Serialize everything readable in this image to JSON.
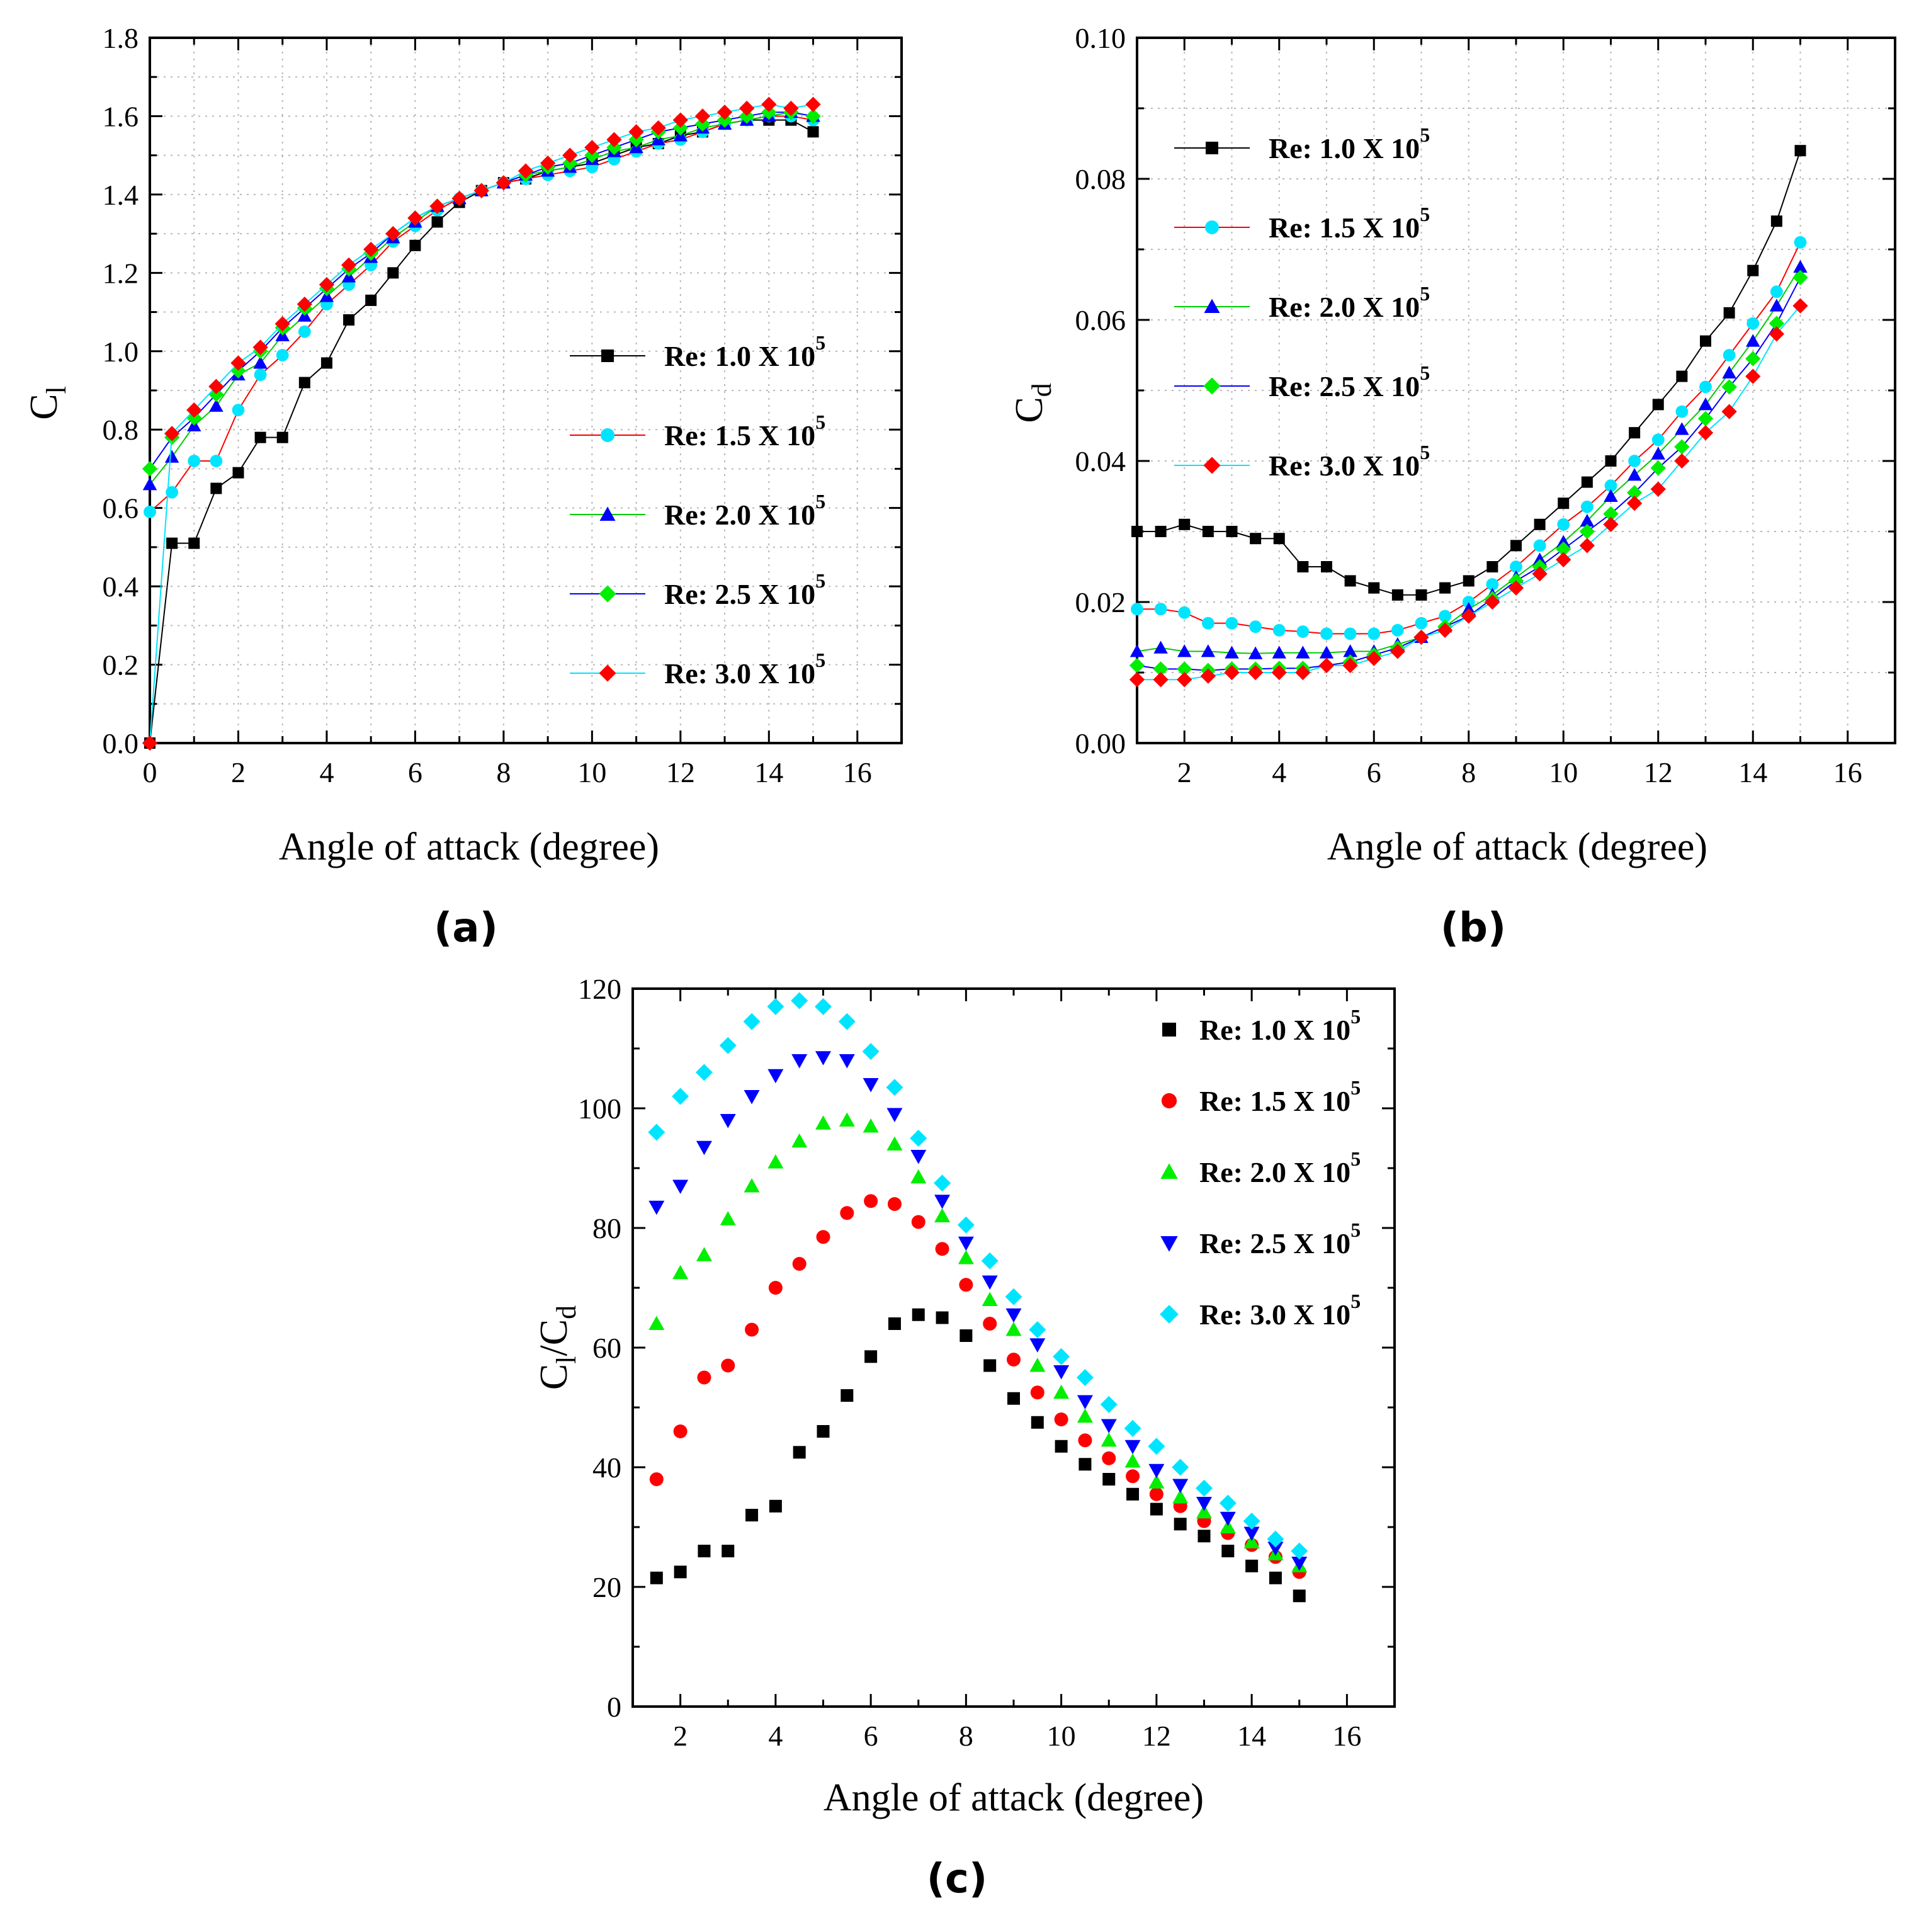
{
  "panels": [
    {
      "id": "a",
      "panel_label": "(a)",
      "xlabel": "Angle of attack (degree)",
      "ylabel_main": "C",
      "ylabel_sub": "l",
      "ylabel_sub2": "",
      "xticks": [
        0,
        2,
        4,
        6,
        8,
        10,
        12,
        14,
        16
      ],
      "yticks": [
        0.0,
        0.2,
        0.4,
        0.6,
        0.8,
        1.0,
        1.2,
        1.4,
        1.6,
        1.8
      ],
      "ytick_decimals": 1,
      "legend_position": "lower-right"
    },
    {
      "id": "b",
      "panel_label": "(b)",
      "xlabel": "Angle of attack (degree)",
      "ylabel_main": "C",
      "ylabel_sub": "d",
      "ylabel_sub2": "",
      "xticks": [
        2,
        4,
        6,
        8,
        10,
        12,
        14,
        16
      ],
      "yticks": [
        0.0,
        0.02,
        0.04,
        0.06,
        0.08,
        0.1
      ],
      "ytick_decimals": 2,
      "legend_position": "upper-left"
    },
    {
      "id": "c",
      "panel_label": "(c)",
      "xlabel": "Angle of attack (degree)",
      "ylabel_main": "C",
      "ylabel_sub": "l",
      "ylabel_sub2": "d",
      "xticks": [
        2,
        4,
        6,
        8,
        10,
        12,
        14,
        16
      ],
      "yticks": [
        0,
        20,
        40,
        60,
        80,
        100,
        120
      ],
      "ytick_decimals": 0,
      "legend_position": "upper-right"
    }
  ],
  "legend_entries": [
    {
      "text": "Re: 1.0 X 10",
      "sup": "5"
    },
    {
      "text": "Re: 1.5 X 10",
      "sup": "5"
    },
    {
      "text": "Re: 2.0 X 10",
      "sup": "5"
    },
    {
      "text": "Re: 2.5 X 10",
      "sup": "5"
    },
    {
      "text": "Re: 3.0 X 10",
      "sup": "5"
    }
  ],
  "series_style": [
    {
      "marker": "square",
      "marker_color": "#000000",
      "line_color": "#000000"
    },
    {
      "marker": "circle-cyan",
      "marker_color": "#00e5ff",
      "line_color": "#ff0000"
    },
    {
      "marker": "triangle-up",
      "marker_color": "#0000ff",
      "line_color": "#00cc00"
    },
    {
      "marker": "diamond",
      "marker_color": "#00ee00",
      "line_color": "#0000ff"
    },
    {
      "marker": "diamond",
      "marker_color": "#ff0000",
      "line_color": "#00e5ff"
    }
  ],
  "series_style_c": [
    {
      "marker": "square",
      "marker_color": "#000000"
    },
    {
      "marker": "circle",
      "marker_color": "#ff0000"
    },
    {
      "marker": "triangle-up",
      "marker_color": "#00ee00"
    },
    {
      "marker": "triangle-down",
      "marker_color": "#0000ff"
    },
    {
      "marker": "diamond",
      "marker_color": "#00e5ff"
    }
  ],
  "chart_data": [
    {
      "type": "line",
      "xlim": [
        0,
        17
      ],
      "ylim": [
        0,
        1.8
      ],
      "grid": true,
      "x": [
        0,
        0.5,
        1,
        1.5,
        2,
        2.5,
        3,
        3.5,
        4,
        4.5,
        5,
        5.5,
        6,
        6.5,
        7,
        7.5,
        8,
        8.5,
        9,
        9.5,
        10,
        10.5,
        11,
        11.5,
        12,
        12.5,
        13,
        13.5,
        14,
        14.5,
        15
      ],
      "series": [
        {
          "values": [
            0.0,
            0.51,
            0.51,
            0.65,
            0.69,
            0.78,
            0.78,
            0.92,
            0.97,
            1.08,
            1.13,
            1.2,
            1.27,
            1.33,
            1.38,
            1.41,
            1.43,
            1.44,
            1.46,
            1.47,
            1.48,
            1.5,
            1.52,
            1.53,
            1.55,
            1.56,
            1.58,
            1.59,
            1.59,
            1.59,
            1.56
          ]
        },
        {
          "values": [
            0.59,
            0.64,
            0.72,
            0.72,
            0.85,
            0.94,
            0.99,
            1.05,
            1.12,
            1.17,
            1.22,
            1.28,
            1.32,
            1.36,
            1.39,
            1.41,
            1.43,
            1.44,
            1.45,
            1.46,
            1.47,
            1.49,
            1.51,
            1.53,
            1.54,
            1.56,
            1.58,
            1.59,
            1.6,
            1.6,
            1.59
          ]
        },
        {
          "values": [
            0.66,
            0.73,
            0.81,
            0.86,
            0.94,
            0.97,
            1.04,
            1.09,
            1.14,
            1.19,
            1.24,
            1.29,
            1.33,
            1.37,
            1.39,
            1.41,
            1.43,
            1.45,
            1.46,
            1.47,
            1.49,
            1.51,
            1.52,
            1.54,
            1.55,
            1.57,
            1.58,
            1.59,
            1.6,
            1.61,
            1.6
          ]
        },
        {
          "values": [
            0.7,
            0.78,
            0.83,
            0.89,
            0.95,
            1.0,
            1.06,
            1.11,
            1.16,
            1.21,
            1.25,
            1.3,
            1.34,
            1.37,
            1.39,
            1.41,
            1.43,
            1.45,
            1.47,
            1.48,
            1.5,
            1.52,
            1.54,
            1.56,
            1.57,
            1.58,
            1.59,
            1.6,
            1.61,
            1.61,
            1.6
          ]
        },
        {
          "values": [
            0.0,
            0.79,
            0.85,
            0.91,
            0.97,
            1.01,
            1.07,
            1.12,
            1.17,
            1.22,
            1.26,
            1.3,
            1.34,
            1.37,
            1.39,
            1.41,
            1.43,
            1.46,
            1.48,
            1.5,
            1.52,
            1.54,
            1.56,
            1.57,
            1.59,
            1.6,
            1.61,
            1.62,
            1.63,
            1.62,
            1.63
          ]
        }
      ]
    },
    {
      "type": "line",
      "xlim": [
        1,
        17
      ],
      "ylim": [
        0,
        0.1
      ],
      "grid": true,
      "x": [
        1,
        1.5,
        2,
        2.5,
        3,
        3.5,
        4,
        4.5,
        5,
        5.5,
        6,
        6.5,
        7,
        7.5,
        8,
        8.5,
        9,
        9.5,
        10,
        10.5,
        11,
        11.5,
        12,
        12.5,
        13,
        13.5,
        14,
        14.5,
        15
      ],
      "series": [
        {
          "values": [
            0.03,
            0.03,
            0.031,
            0.03,
            0.03,
            0.029,
            0.029,
            0.025,
            0.025,
            0.023,
            0.022,
            0.021,
            0.021,
            0.022,
            0.023,
            0.025,
            0.028,
            0.031,
            0.034,
            0.037,
            0.04,
            0.044,
            0.048,
            0.052,
            0.057,
            0.061,
            0.067,
            0.074,
            0.084
          ]
        },
        {
          "values": [
            0.019,
            0.019,
            0.0185,
            0.017,
            0.017,
            0.0165,
            0.016,
            0.0158,
            0.0155,
            0.0155,
            0.0155,
            0.016,
            0.017,
            0.018,
            0.02,
            0.0225,
            0.025,
            0.028,
            0.031,
            0.0335,
            0.0365,
            0.04,
            0.043,
            0.047,
            0.0505,
            0.055,
            0.0595,
            0.064,
            0.071
          ]
        },
        {
          "values": [
            0.013,
            0.0135,
            0.013,
            0.013,
            0.0128,
            0.0127,
            0.0128,
            0.0128,
            0.0128,
            0.013,
            0.013,
            0.014,
            0.015,
            0.0165,
            0.019,
            0.021,
            0.0235,
            0.026,
            0.0285,
            0.0315,
            0.035,
            0.038,
            0.041,
            0.0445,
            0.048,
            0.0525,
            0.057,
            0.062,
            0.0675
          ]
        },
        {
          "values": [
            0.011,
            0.0105,
            0.0105,
            0.0103,
            0.0105,
            0.0105,
            0.0106,
            0.0106,
            0.011,
            0.0115,
            0.0125,
            0.0135,
            0.015,
            0.0165,
            0.018,
            0.0205,
            0.023,
            0.025,
            0.0275,
            0.03,
            0.0325,
            0.0355,
            0.039,
            0.042,
            0.046,
            0.0505,
            0.0545,
            0.0595,
            0.066
          ]
        },
        {
          "values": [
            0.009,
            0.009,
            0.009,
            0.0095,
            0.01,
            0.01,
            0.01,
            0.01,
            0.011,
            0.011,
            0.012,
            0.013,
            0.015,
            0.016,
            0.018,
            0.02,
            0.022,
            0.024,
            0.026,
            0.028,
            0.031,
            0.034,
            0.036,
            0.04,
            0.044,
            0.047,
            0.052,
            0.058,
            0.062
          ]
        }
      ]
    },
    {
      "type": "scatter",
      "xlim": [
        1,
        17
      ],
      "ylim": [
        0,
        120
      ],
      "grid": false,
      "x": [
        1.5,
        2,
        2.5,
        3,
        3.5,
        4,
        4.5,
        5,
        5.5,
        6,
        6.5,
        7,
        7.5,
        8,
        8.5,
        9,
        9.5,
        10,
        10.5,
        11,
        11.5,
        12,
        12.5,
        13,
        13.5,
        14,
        14.5,
        15
      ],
      "series": [
        {
          "values": [
            21.5,
            22.5,
            26,
            26,
            32,
            33.5,
            42.5,
            46,
            52,
            58.5,
            64,
            65.5,
            65,
            62,
            57,
            51.5,
            47.5,
            43.5,
            40.5,
            38,
            35.5,
            33,
            30.5,
            28.5,
            26,
            23.5,
            21.5,
            18.5
          ]
        },
        {
          "values": [
            38,
            46,
            55,
            57,
            63,
            70,
            74,
            78.5,
            82.5,
            84.5,
            84,
            81,
            76.5,
            70.5,
            64,
            58,
            52.5,
            48,
            44.5,
            41.5,
            38.5,
            35.5,
            33.5,
            31,
            29,
            27,
            25,
            22.5
          ]
        },
        {
          "values": [
            64,
            72.5,
            75.5,
            81.5,
            87,
            91,
            94.5,
            97.5,
            98,
            97,
            94,
            88.5,
            82,
            75,
            68,
            63,
            57,
            52.5,
            48.5,
            44.5,
            41,
            37.5,
            35,
            32.5,
            30,
            27.5,
            25.5,
            23.5
          ]
        },
        {
          "values": [
            83.5,
            87,
            93.5,
            98,
            102,
            105.5,
            108,
            108.5,
            108,
            104,
            99,
            92,
            84.5,
            77.5,
            71,
            65.5,
            60.5,
            56,
            51,
            47,
            43.5,
            39.5,
            37,
            34,
            31.5,
            29,
            26.5,
            24
          ]
        },
        {
          "values": [
            96,
            102,
            106,
            110.5,
            114.5,
            117,
            118,
            117,
            114.5,
            109.5,
            103.5,
            95,
            87.5,
            80.5,
            74.5,
            68.5,
            63,
            58.5,
            55,
            50.5,
            46.5,
            43.5,
            40,
            36.5,
            34,
            31,
            28,
            26
          ]
        }
      ]
    }
  ]
}
